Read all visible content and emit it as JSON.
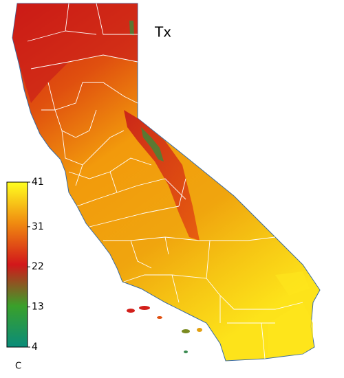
{
  "title": "Tx",
  "colorbar": {
    "range": [
      4,
      41
    ],
    "ticks": [
      41,
      31,
      22,
      13,
      4
    ],
    "unit": "C",
    "colors": [
      "#0a8c7a",
      "#3aa02a",
      "#d2171a",
      "#f08a10",
      "#ffff20"
    ]
  }
}
